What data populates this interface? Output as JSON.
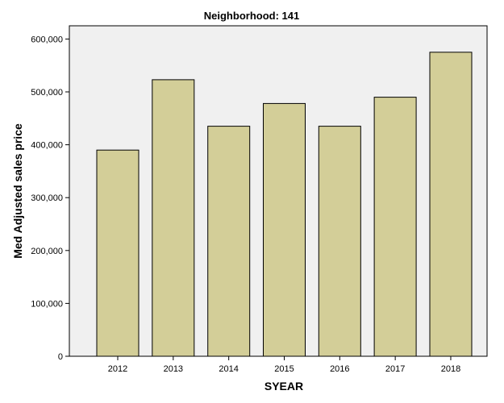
{
  "chart_data": {
    "type": "bar",
    "title": "Neighborhood: 141",
    "xlabel": "SYEAR",
    "ylabel": "Med Adjusted sales price",
    "categories": [
      "2012",
      "2013",
      "2014",
      "2015",
      "2016",
      "2017",
      "2018"
    ],
    "values": [
      390000,
      523000,
      435000,
      478000,
      435000,
      490000,
      575000
    ],
    "ylim": [
      0,
      625000
    ],
    "yticks": [
      0,
      100000,
      200000,
      300000,
      400000,
      500000,
      600000
    ],
    "ytick_labels": [
      "0",
      "100,000",
      "200,000",
      "300,000",
      "400,000",
      "500,000",
      "600,000"
    ],
    "grid": false,
    "legend": "none",
    "colors": {
      "bar_fill": "#d3ce98",
      "bar_stroke": "#000000",
      "plot_background": "#f0f0f0",
      "frame": "#000000"
    }
  }
}
